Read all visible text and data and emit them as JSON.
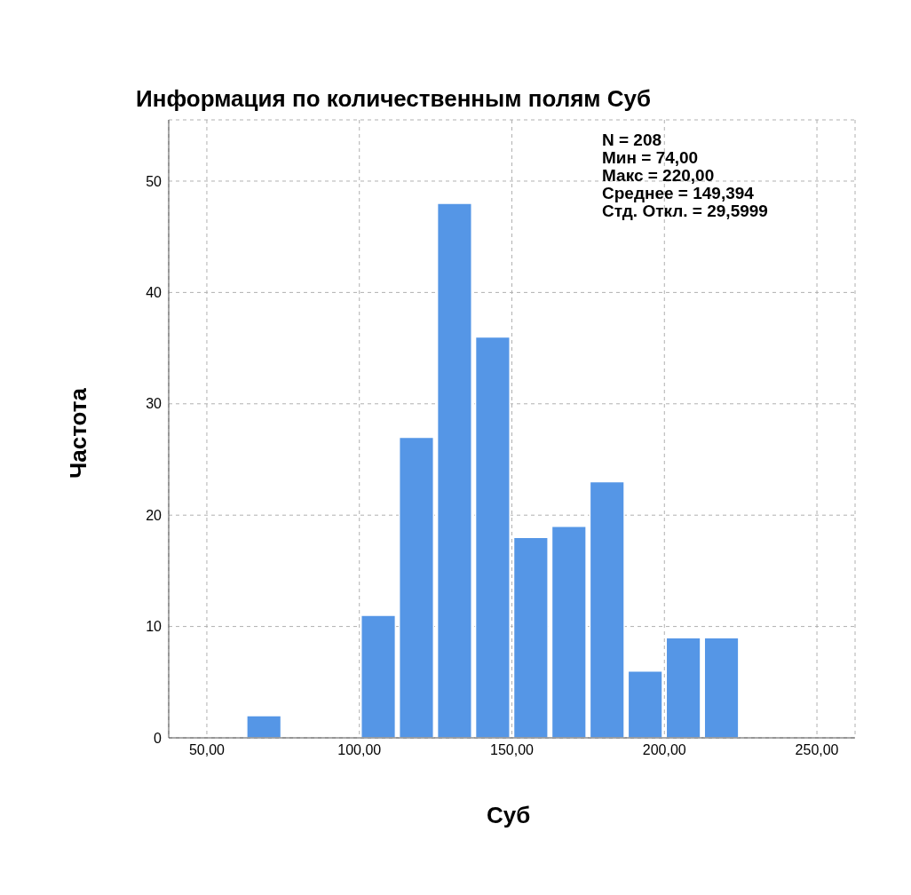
{
  "chart_data": {
    "type": "histogram",
    "title": "Информация по количественным полям Суб",
    "xlabel": "Суб",
    "ylabel": "Частота",
    "bins": [
      37.5,
      50,
      62.5,
      75,
      87.5,
      100,
      112.5,
      125,
      137.5,
      150,
      162.5,
      175,
      187.5,
      200,
      212.5,
      225,
      237.5,
      250,
      262.5
    ],
    "values": [
      0,
      0,
      2,
      0,
      0,
      11,
      27,
      48,
      36,
      18,
      19,
      23,
      6,
      9,
      9,
      0,
      0,
      0
    ],
    "color": "#5596e6",
    "xlim": [
      37.5,
      262.5
    ],
    "xticks": [
      {
        "value": 50,
        "label": "50,00"
      },
      {
        "value": 100,
        "label": "100,00"
      },
      {
        "value": 150,
        "label": "150,00"
      },
      {
        "value": 200,
        "label": "200,00"
      },
      {
        "value": 250,
        "label": "250,00"
      }
    ],
    "ylim": [
      0,
      55.5
    ],
    "yticks": [
      0,
      10,
      20,
      30,
      40,
      50
    ],
    "grid": true,
    "line_style": "dashed",
    "annotations": [
      "N = 208",
      "Мин = 74,00",
      "Макс = 220,00",
      "Среднее = 149,394",
      "Стд. Откл. = 29,5999"
    ]
  }
}
